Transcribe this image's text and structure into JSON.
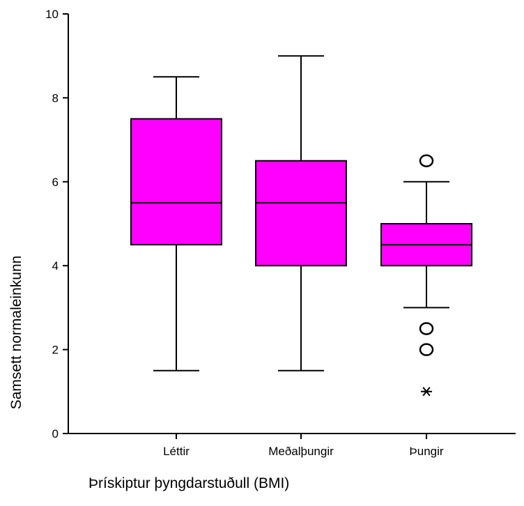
{
  "chart_data": {
    "type": "boxplot",
    "xlabel": "Þrískiptur þyngdarstuðull (BMI)",
    "ylabel": "Samsett normaleinkunn",
    "ylim": [
      0,
      10
    ],
    "yticks": [
      0,
      2,
      4,
      6,
      8,
      10
    ],
    "grid": false,
    "box_color": "#ff00ff",
    "groups": [
      {
        "category": "Léttir",
        "whisker_low": 1.5,
        "q1": 4.5,
        "median": 5.5,
        "q3": 7.5,
        "whisker_high": 8.5,
        "outliers": [],
        "extremes": []
      },
      {
        "category": "Meðalþungir",
        "whisker_low": 1.5,
        "q1": 4.0,
        "median": 5.5,
        "q3": 6.5,
        "whisker_high": 9.0,
        "outliers": [],
        "extremes": []
      },
      {
        "category": "Þungir",
        "whisker_low": 3.0,
        "q1": 4.0,
        "median": 4.5,
        "q3": 5.0,
        "whisker_high": 6.0,
        "outliers": [
          6.5,
          2.5,
          2.0
        ],
        "extremes": [
          1.0
        ]
      }
    ]
  }
}
